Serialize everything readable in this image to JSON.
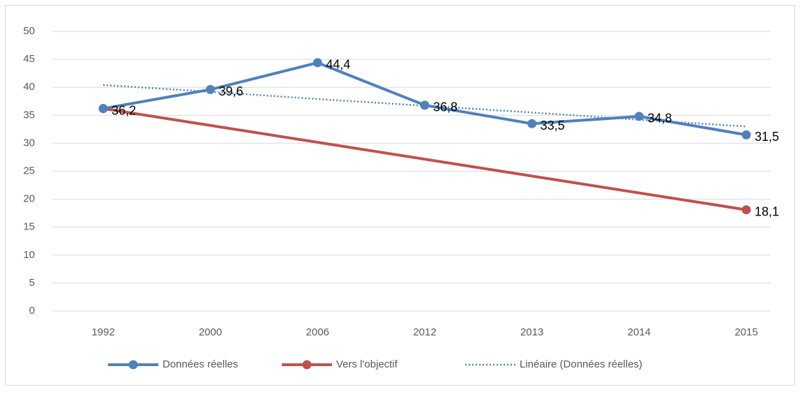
{
  "chart_data": {
    "type": "line",
    "categories": [
      "1992",
      "2000",
      "2006",
      "2012",
      "2013",
      "2014",
      "2015"
    ],
    "series": [
      {
        "name": "Données réelles",
        "color": "#4f81bd",
        "style": "solid",
        "marker": true,
        "values": [
          36.2,
          39.6,
          44.4,
          36.8,
          33.5,
          34.8,
          31.5
        ],
        "value_labels": [
          "36,2",
          "39,6",
          "44,4",
          "36,8",
          "33,5",
          "34,8",
          "31,5"
        ]
      },
      {
        "name": "Vers l'objectif",
        "color": "#c0504d",
        "style": "solid",
        "marker": true,
        "connect_gaps": true,
        "values": [
          36.2,
          null,
          null,
          null,
          null,
          null,
          18.1
        ],
        "value_labels": [
          null,
          null,
          null,
          null,
          null,
          null,
          "18,1"
        ]
      },
      {
        "name": "Linéaire (Données réelles)",
        "color": "#4f81bd",
        "style": "dotted",
        "marker": false,
        "values": [
          40.4,
          39.2,
          37.9,
          36.7,
          35.5,
          34.2,
          33.0
        ]
      }
    ],
    "ylim": [
      0,
      50
    ],
    "yticks": [
      0,
      5,
      10,
      15,
      20,
      25,
      30,
      35,
      40,
      45,
      50
    ],
    "grid": true,
    "legend": "bottom"
  }
}
